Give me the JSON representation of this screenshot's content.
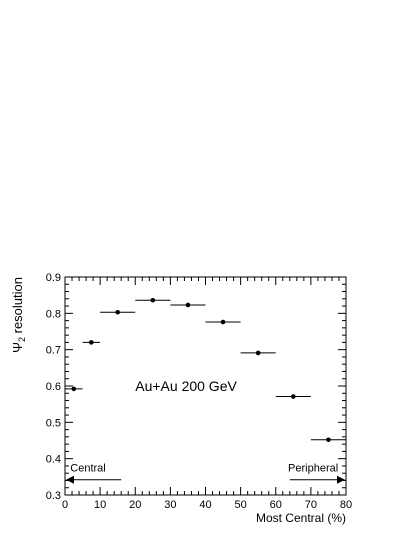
{
  "chart_data": {
    "type": "scatter",
    "title": "",
    "xlabel": "Most Central (%)",
    "ylabel": {
      "main": "Ψ",
      "sub": "2",
      "rest": " resolution"
    },
    "xlim": [
      0,
      80
    ],
    "ylim": [
      0.3,
      0.9
    ],
    "x_ticks": [
      0,
      10,
      20,
      30,
      40,
      50,
      60,
      70,
      80
    ],
    "x_tick_labels": [
      "0",
      "10",
      "20",
      "30",
      "40",
      "50",
      "60",
      "70",
      "80"
    ],
    "y_ticks": [
      0.3,
      0.4,
      0.5,
      0.6,
      0.7,
      0.8,
      0.9
    ],
    "y_tick_labels": [
      "0.3",
      "0.4",
      "0.5",
      "0.6",
      "0.7",
      "0.8",
      "0.9"
    ],
    "grid": false,
    "series": [
      {
        "name": "",
        "points": [
          {
            "x": 2.5,
            "y": 0.592,
            "xerr_low": 2.5,
            "xerr_high": 2.5
          },
          {
            "x": 7.5,
            "y": 0.72,
            "xerr_low": 2.5,
            "xerr_high": 2.5
          },
          {
            "x": 15,
            "y": 0.803,
            "xerr_low": 5,
            "xerr_high": 5
          },
          {
            "x": 25,
            "y": 0.836,
            "xerr_low": 5,
            "xerr_high": 5
          },
          {
            "x": 35,
            "y": 0.823,
            "xerr_low": 5,
            "xerr_high": 5
          },
          {
            "x": 45,
            "y": 0.776,
            "xerr_low": 5,
            "xerr_high": 5
          },
          {
            "x": 55,
            "y": 0.691,
            "xerr_low": 5,
            "xerr_high": 5
          },
          {
            "x": 65,
            "y": 0.571,
            "xerr_low": 5,
            "xerr_high": 5
          },
          {
            "x": 75,
            "y": 0.452,
            "xerr_low": 5,
            "xerr_high": 5
          }
        ]
      }
    ],
    "annotations": {
      "system_label": "Au+Au 200 GeV",
      "central_label": "Central",
      "peripheral_label": "Peripheral"
    },
    "colors": {
      "axis": "#000000",
      "marker": "#000000",
      "background": "#ffffff"
    }
  }
}
